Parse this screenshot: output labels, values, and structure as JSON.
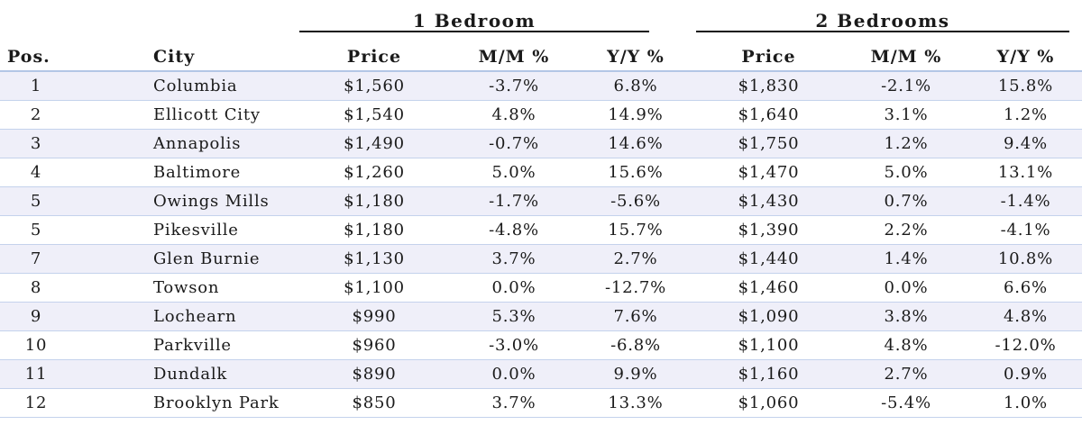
{
  "chart_data": {
    "type": "table",
    "group_headers": [
      "1 Bedroom",
      "2 Bedrooms"
    ],
    "columns": [
      "Pos.",
      "City",
      "Price",
      "M/M %",
      "Y/Y %",
      "Price",
      "M/M %",
      "Y/Y %"
    ],
    "rows": [
      [
        "1",
        "Columbia",
        "$1,560",
        "-3.7%",
        "6.8%",
        "$1,830",
        "-2.1%",
        "15.8%"
      ],
      [
        "2",
        "Ellicott City",
        "$1,540",
        "4.8%",
        "14.9%",
        "$1,640",
        "3.1%",
        "1.2%"
      ],
      [
        "3",
        "Annapolis",
        "$1,490",
        "-0.7%",
        "14.6%",
        "$1,750",
        "1.2%",
        "9.4%"
      ],
      [
        "4",
        "Baltimore",
        "$1,260",
        "5.0%",
        "15.6%",
        "$1,470",
        "5.0%",
        "13.1%"
      ],
      [
        "5",
        "Owings Mills",
        "$1,180",
        "-1.7%",
        "-5.6%",
        "$1,430",
        "0.7%",
        "-1.4%"
      ],
      [
        "5",
        "Pikesville",
        "$1,180",
        "-4.8%",
        "15.7%",
        "$1,390",
        "2.2%",
        "-4.1%"
      ],
      [
        "7",
        "Glen Burnie",
        "$1,130",
        "3.7%",
        "2.7%",
        "$1,440",
        "1.4%",
        "10.8%"
      ],
      [
        "8",
        "Towson",
        "$1,100",
        "0.0%",
        "-12.7%",
        "$1,460",
        "0.0%",
        "6.6%"
      ],
      [
        "9",
        "Lochearn",
        "$990",
        "5.3%",
        "7.6%",
        "$1,090",
        "3.8%",
        "4.8%"
      ],
      [
        "10",
        "Parkville",
        "$960",
        "-3.0%",
        "-6.8%",
        "$1,100",
        "4.8%",
        "-12.0%"
      ],
      [
        "11",
        "Dundalk",
        "$890",
        "0.0%",
        "9.9%",
        "$1,160",
        "2.7%",
        "0.9%"
      ],
      [
        "12",
        "Brooklyn Park",
        "$850",
        "3.7%",
        "13.3%",
        "$1,060",
        "-5.4%",
        "1.0%"
      ]
    ]
  }
}
